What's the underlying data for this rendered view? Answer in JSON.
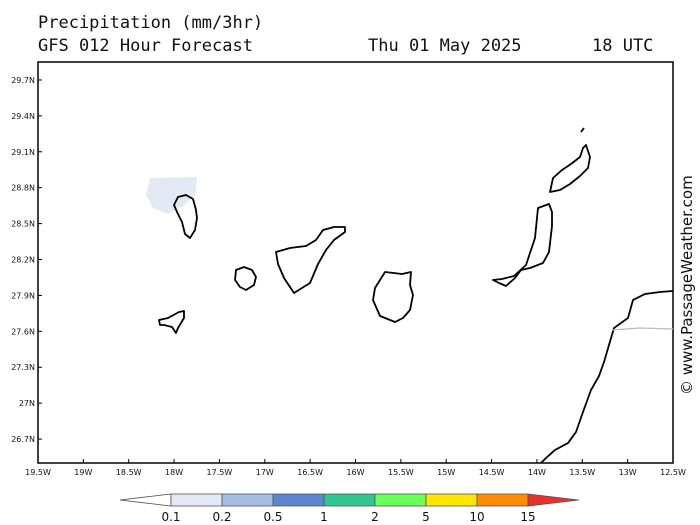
{
  "header": {
    "line1": "Precipitation (mm/3hr)",
    "line2": "GFS 012 Hour Forecast",
    "date": "Thu 01 May 2025",
    "time": "18 UTC"
  },
  "credit": "© www.PassageWeather.com",
  "map": {
    "lon_range": [
      -19.5,
      -12.5
    ],
    "lat_range": [
      26.5,
      29.85
    ],
    "lat_ticks": [
      "29.7N",
      "29.4N",
      "29.1N",
      "28.8N",
      "28.5N",
      "28.2N",
      "27.9N",
      "27.6N",
      "27.3N",
      "27N",
      "26.7N"
    ],
    "lat_values": [
      29.7,
      29.4,
      29.1,
      28.8,
      28.5,
      28.2,
      27.9,
      27.6,
      27.3,
      27.0,
      26.7
    ],
    "lon_ticks": [
      "19.5W",
      "19W",
      "18.5W",
      "18W",
      "17.5W",
      "17W",
      "16.5W",
      "16W",
      "15.5W",
      "15W",
      "14.5W",
      "14W",
      "13.5W",
      "13W",
      "12.5W"
    ],
    "lon_values": [
      -19.5,
      -19.0,
      -18.5,
      -18.0,
      -17.5,
      -17.0,
      -16.5,
      -16.0,
      -15.5,
      -15.0,
      -14.5,
      -14.0,
      -13.5,
      -13.0,
      -12.5
    ],
    "land_color": "#000000",
    "precip_color": "#e2e9f5"
  },
  "colorbar": {
    "labels": [
      "0.1",
      "0.2",
      "0.5",
      "1",
      "2",
      "5",
      "10",
      "15"
    ],
    "colors": [
      "#ffffff",
      "#e2e9f5",
      "#a3bde2",
      "#5b87d0",
      "#2fc690",
      "#6bff5c",
      "#ffe600",
      "#ff8c00",
      "#e8302e"
    ]
  }
}
